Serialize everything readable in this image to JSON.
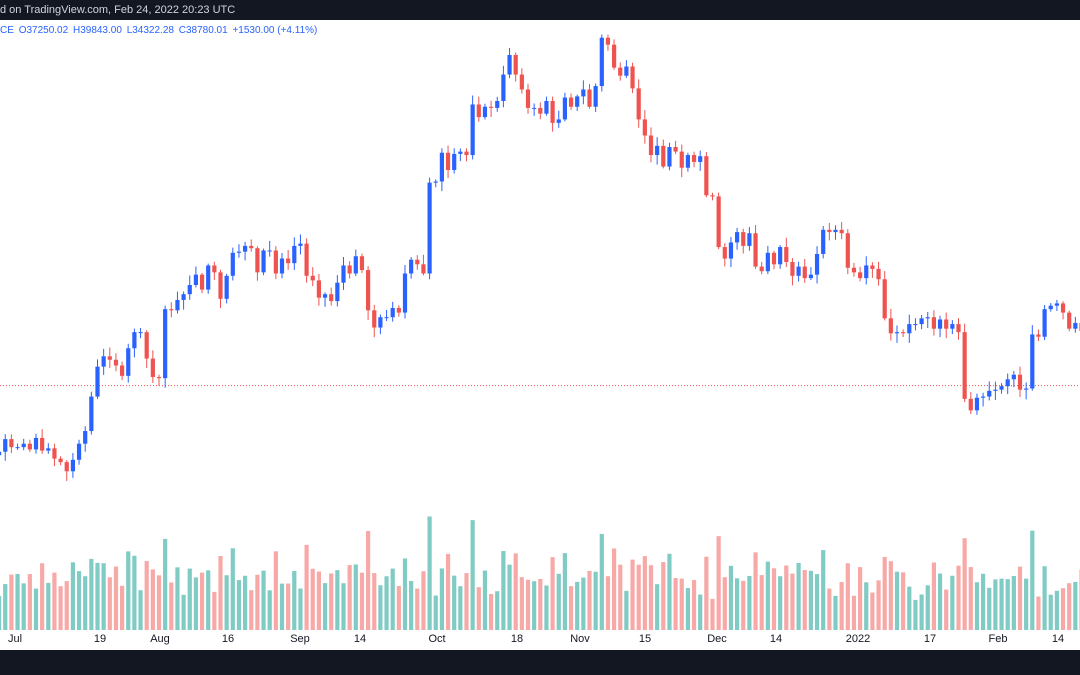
{
  "header": {
    "text": "d on TradingView.com, Feb 24, 2022 20:23 UTC"
  },
  "ohlc": {
    "prefix": "CE",
    "open": "O37250.02",
    "high": "H39843.00",
    "low": "L34322.28",
    "close": "C38780.01",
    "change": "+1530.00 (+4.11%)"
  },
  "colors": {
    "up": "#2962ff",
    "down": "#ef5350",
    "vol_up": "#80cbc4",
    "vol_down": "#f7a9a7",
    "header_bg": "#131722",
    "dotted_line": "#ef5350"
  },
  "chart_data": {
    "type": "candlestick",
    "price_line": 37250,
    "x_axis_labels": [
      "Jul",
      "19",
      "Aug",
      "16",
      "Sep",
      "14",
      "Oct",
      "18",
      "Nov",
      "15",
      "Dec",
      "14",
      "2022",
      "17",
      "Feb",
      "14"
    ],
    "closes": [
      31500,
      32600,
      31900,
      31900,
      32200,
      31700,
      32700,
      31600,
      31800,
      30900,
      30600,
      29800,
      30800,
      32200,
      33300,
      36300,
      38900,
      39800,
      39500,
      39000,
      38100,
      40500,
      41900,
      41900,
      39600,
      38000,
      37900,
      43900,
      43800,
      44700,
      45200,
      46000,
      46900,
      45600,
      47700,
      47100,
      44800,
      46800,
      48800,
      48900,
      49400,
      49200,
      47100,
      49000,
      49000,
      47000,
      48300,
      47900,
      49400,
      49600,
      46800,
      46400,
      44900,
      45200,
      44600,
      46200,
      47700,
      47000,
      48500,
      47300,
      43800,
      42300,
      43200,
      43200,
      44000,
      43600,
      47000,
      48200,
      47800,
      47000,
      54900,
      55000,
      57500,
      56000,
      57400,
      57600,
      57300,
      61700,
      60600,
      61500,
      61400,
      62000,
      64300,
      66000,
      64300,
      63000,
      61400,
      61400,
      60900,
      62000,
      60100,
      60400,
      62300,
      61500,
      62400,
      63000,
      61500,
      63300,
      67500,
      66900,
      64900,
      64200,
      65000,
      63100,
      60400,
      59000,
      57300,
      58100,
      56300,
      58000,
      57600,
      56200,
      57300,
      56700,
      57200,
      53800,
      53700,
      49300,
      48300,
      49700,
      50600,
      49400,
      50500,
      47600,
      47200,
      48800,
      47800,
      49300,
      48000,
      46800,
      47600,
      46600,
      46900,
      48700,
      50800,
      50600,
      50800,
      50500,
      47500,
      47100,
      46600,
      47700,
      47400,
      46500,
      43100,
      41800,
      41900,
      41800,
      42600,
      42600,
      43100,
      43200,
      42200,
      43000,
      42200,
      42600,
      41900,
      36100,
      35100,
      36200,
      36300,
      36800,
      36900,
      37200,
      37800,
      38200,
      36900,
      37000,
      41700,
      41500,
      43900,
      44200,
      44400,
      43600,
      42200,
      42700,
      42000,
      44700,
      43800,
      40100,
      38800
    ]
  }
}
